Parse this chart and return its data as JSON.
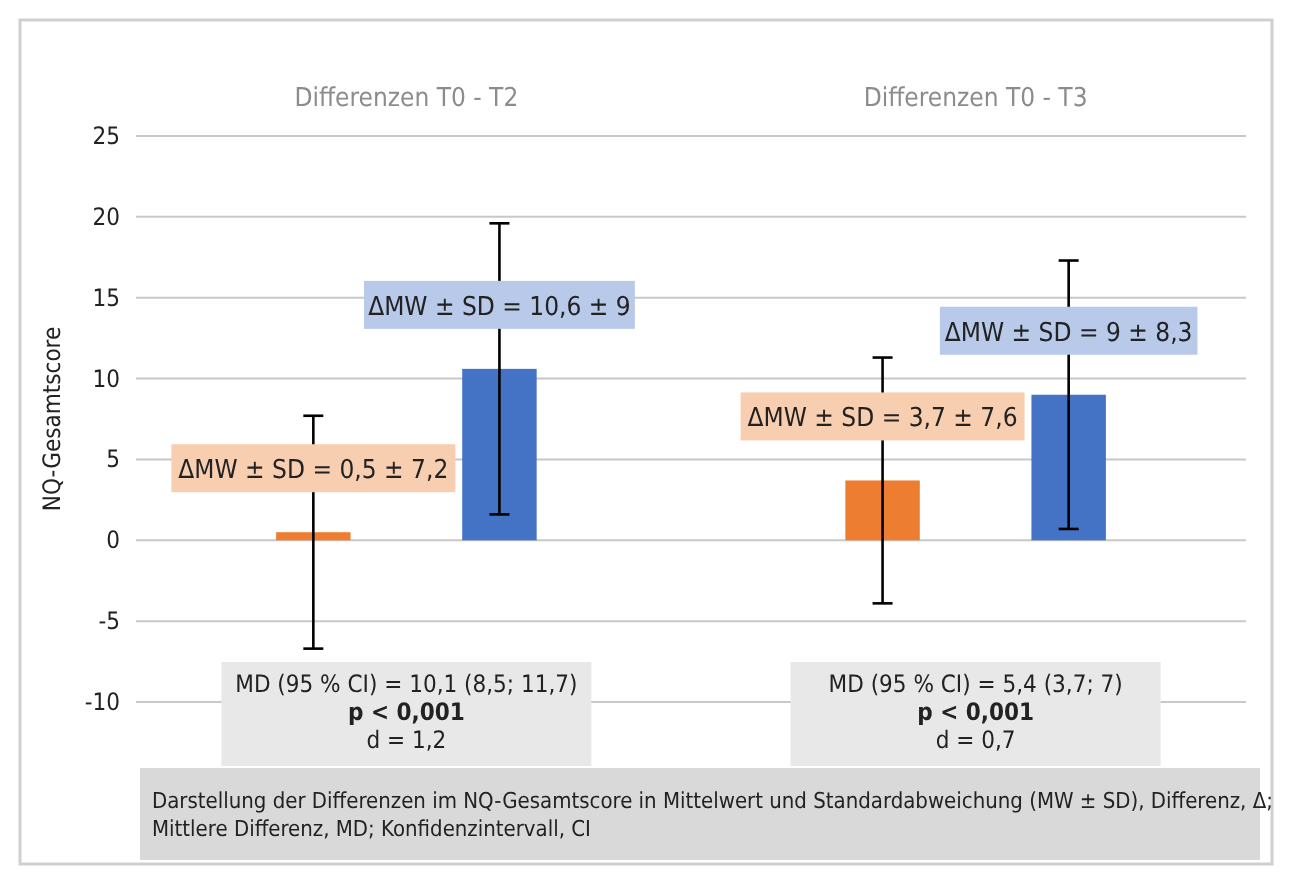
{
  "chart_data": {
    "type": "bar",
    "ylabel": "NQ-Gesamtscore",
    "categories": [
      "Differenzen T0 - T2",
      "Differenzen T0 - T3"
    ],
    "series": [
      {
        "color": "#ed7d31",
        "values": [
          0.5,
          3.7
        ],
        "errors": [
          7.2,
          7.6
        ],
        "value_labels": [
          "ΔMW ± SD = 0,5 ± 7,2",
          "ΔMW ± SD = 3,7 ± 7,6"
        ]
      },
      {
        "color": "#4472c4",
        "values": [
          10.6,
          9
        ],
        "errors": [
          9,
          8.3
        ],
        "value_labels": [
          "ΔMW ± SD = 10,6 ± 9",
          "ΔMW ± SD = 9 ± 8,3"
        ]
      }
    ],
    "ylim": [
      -10,
      25
    ],
    "yticks": [
      -10,
      -5,
      0,
      5,
      10,
      15,
      20,
      25
    ],
    "grid": "y",
    "annotations": [
      "MD (95 % CI) = 10,1 (8,5; 11,7)\np < 0,001\nd = 1,2",
      "MD (95 % CI) = 5,4 (3,7; 7)\np < 0,001\nd = 0,7",
      "Darstellung der Differenzen im NQ-Gesamtscore in Mittelwert und Standardabweichung (MW ± SD), Differenz, Δ;\nMittlere Differenz, MD; Konfidenzintervall, CI"
    ]
  }
}
